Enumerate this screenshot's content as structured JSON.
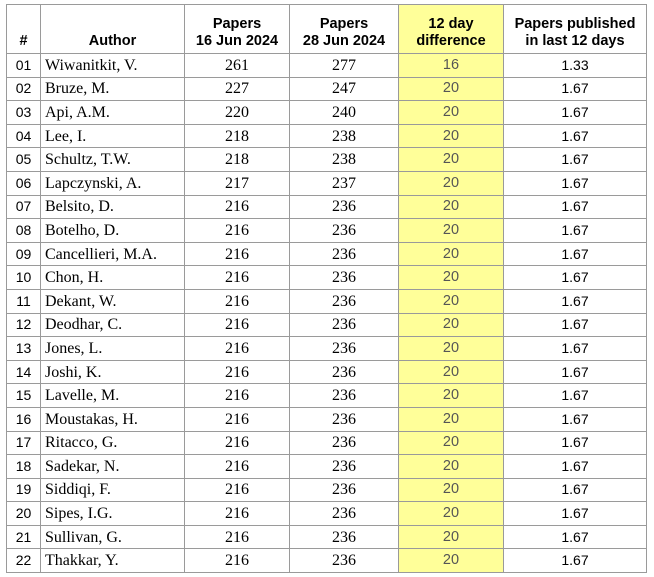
{
  "headers": {
    "num": "#",
    "author": "Author",
    "papers_a": [
      "Papers",
      "16 Jun 2024"
    ],
    "papers_b": [
      "Papers",
      "28 Jun 2024"
    ],
    "diff": [
      "12 day",
      "difference"
    ],
    "rate": [
      "Papers published",
      "in last 12 days"
    ]
  },
  "highlight_color": "#ffff99",
  "rows": [
    {
      "num": "01",
      "author": "Wiwanitkit, V.",
      "a": "261",
      "b": "277",
      "diff": "16",
      "rate": "1.33"
    },
    {
      "num": "02",
      "author": "Bruze, M.",
      "a": "227",
      "b": "247",
      "diff": "20",
      "rate": "1.67"
    },
    {
      "num": "03",
      "author": "Api, A.M.",
      "a": "220",
      "b": "240",
      "diff": "20",
      "rate": "1.67"
    },
    {
      "num": "04",
      "author": "Lee, I.",
      "a": "218",
      "b": "238",
      "diff": "20",
      "rate": "1.67"
    },
    {
      "num": "05",
      "author": "Schultz, T.W.",
      "a": "218",
      "b": "238",
      "diff": "20",
      "rate": "1.67"
    },
    {
      "num": "06",
      "author": "Lapczynski, A.",
      "a": "217",
      "b": "237",
      "diff": "20",
      "rate": "1.67"
    },
    {
      "num": "07",
      "author": "Belsito, D.",
      "a": "216",
      "b": "236",
      "diff": "20",
      "rate": "1.67"
    },
    {
      "num": "08",
      "author": "Botelho, D.",
      "a": "216",
      "b": "236",
      "diff": "20",
      "rate": "1.67"
    },
    {
      "num": "09",
      "author": "Cancellieri, M.A.",
      "a": "216",
      "b": "236",
      "diff": "20",
      "rate": "1.67"
    },
    {
      "num": "10",
      "author": "Chon, H.",
      "a": "216",
      "b": "236",
      "diff": "20",
      "rate": "1.67"
    },
    {
      "num": "11",
      "author": "Dekant, W.",
      "a": "216",
      "b": "236",
      "diff": "20",
      "rate": "1.67"
    },
    {
      "num": "12",
      "author": "Deodhar, C.",
      "a": "216",
      "b": "236",
      "diff": "20",
      "rate": "1.67"
    },
    {
      "num": "13",
      "author": "Jones, L.",
      "a": "216",
      "b": "236",
      "diff": "20",
      "rate": "1.67"
    },
    {
      "num": "14",
      "author": "Joshi, K.",
      "a": "216",
      "b": "236",
      "diff": "20",
      "rate": "1.67"
    },
    {
      "num": "15",
      "author": "Lavelle, M.",
      "a": "216",
      "b": "236",
      "diff": "20",
      "rate": "1.67"
    },
    {
      "num": "16",
      "author": "Moustakas, H.",
      "a": "216",
      "b": "236",
      "diff": "20",
      "rate": "1.67"
    },
    {
      "num": "17",
      "author": "Ritacco, G.",
      "a": "216",
      "b": "236",
      "diff": "20",
      "rate": "1.67"
    },
    {
      "num": "18",
      "author": "Sadekar, N.",
      "a": "216",
      "b": "236",
      "diff": "20",
      "rate": "1.67"
    },
    {
      "num": "19",
      "author": "Siddiqi, F.",
      "a": "216",
      "b": "236",
      "diff": "20",
      "rate": "1.67"
    },
    {
      "num": "20",
      "author": "Sipes, I.G.",
      "a": "216",
      "b": "236",
      "diff": "20",
      "rate": "1.67"
    },
    {
      "num": "21",
      "author": "Sullivan, G.",
      "a": "216",
      "b": "236",
      "diff": "20",
      "rate": "1.67"
    },
    {
      "num": "22",
      "author": "Thakkar, Y.",
      "a": "216",
      "b": "236",
      "diff": "20",
      "rate": "1.67"
    }
  ]
}
